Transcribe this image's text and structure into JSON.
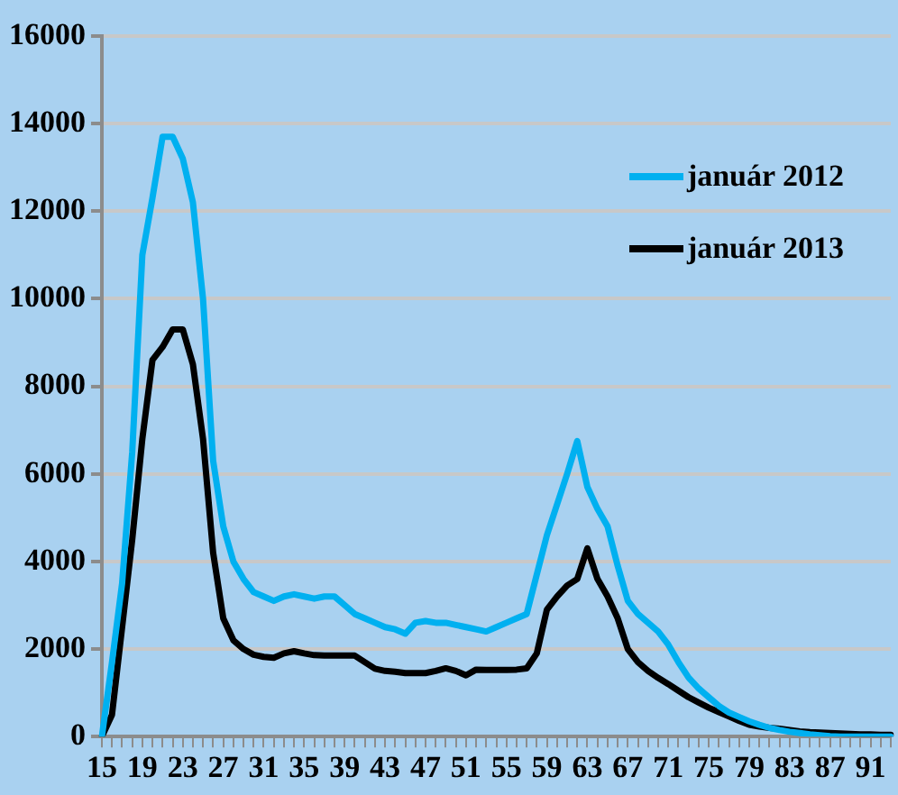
{
  "chart_data": {
    "type": "line",
    "categories": [
      "15",
      null,
      null,
      null,
      "19",
      null,
      null,
      null,
      "23",
      null,
      null,
      null,
      "27",
      null,
      null,
      null,
      "31",
      null,
      null,
      null,
      "35",
      null,
      null,
      null,
      "39",
      null,
      null,
      null,
      "43",
      null,
      null,
      null,
      "47",
      null,
      null,
      null,
      "51",
      null,
      null,
      null,
      "55",
      null,
      null,
      null,
      "59",
      null,
      null,
      null,
      "63",
      null,
      null,
      null,
      "67",
      null,
      null,
      null,
      "71",
      null,
      null,
      null,
      "75",
      null,
      null,
      null,
      "79",
      null,
      null,
      null,
      "83",
      null,
      null,
      null,
      "87",
      null,
      null,
      null,
      "91",
      null,
      null
    ],
    "series": [
      {
        "name": "január 2012",
        "color": "#00b0f0",
        "values": [
          0,
          1700,
          3500,
          6500,
          11000,
          12300,
          13700,
          13700,
          13200,
          12200,
          10000,
          6300,
          4800,
          4000,
          3600,
          3300,
          3200,
          3100,
          3200,
          3250,
          3200,
          3150,
          3200,
          3200,
          3000,
          2800,
          2700,
          2600,
          2500,
          2450,
          2350,
          2600,
          2640,
          2600,
          2600,
          2550,
          2500,
          2450,
          2400,
          2500,
          2600,
          2700,
          2800,
          3700,
          4600,
          5300,
          6000,
          6750,
          5700,
          5200,
          4800,
          3900,
          3100,
          2800,
          2600,
          2400,
          2100,
          1700,
          1350,
          1100,
          900,
          700,
          550,
          450,
          350,
          270,
          200,
          150,
          110,
          80,
          50,
          30,
          10,
          0,
          0,
          0,
          0,
          0,
          0
        ]
      },
      {
        "name": "január 2013",
        "color": "#000000",
        "values": [
          0,
          500,
          2500,
          4500,
          6800,
          8600,
          8900,
          9300,
          9300,
          8500,
          6800,
          4200,
          2700,
          2200,
          2000,
          1870,
          1820,
          1800,
          1900,
          1950,
          1900,
          1860,
          1850,
          1850,
          1850,
          1850,
          1700,
          1550,
          1500,
          1480,
          1450,
          1450,
          1450,
          1500,
          1560,
          1500,
          1400,
          1530,
          1520,
          1520,
          1520,
          1530,
          1560,
          1900,
          2900,
          3200,
          3450,
          3600,
          4300,
          3600,
          3200,
          2700,
          2000,
          1700,
          1500,
          1340,
          1200,
          1050,
          900,
          780,
          660,
          560,
          460,
          360,
          270,
          230,
          200,
          180,
          150,
          120,
          100,
          90,
          80,
          70,
          60,
          50,
          50,
          40,
          40
        ]
      }
    ],
    "ylim": [
      0,
      16000
    ],
    "yticks": [
      0,
      2000,
      4000,
      6000,
      8000,
      10000,
      12000,
      14000,
      16000
    ],
    "grid": "y",
    "legend": "top right",
    "marker": "none",
    "line_style": "solid"
  }
}
